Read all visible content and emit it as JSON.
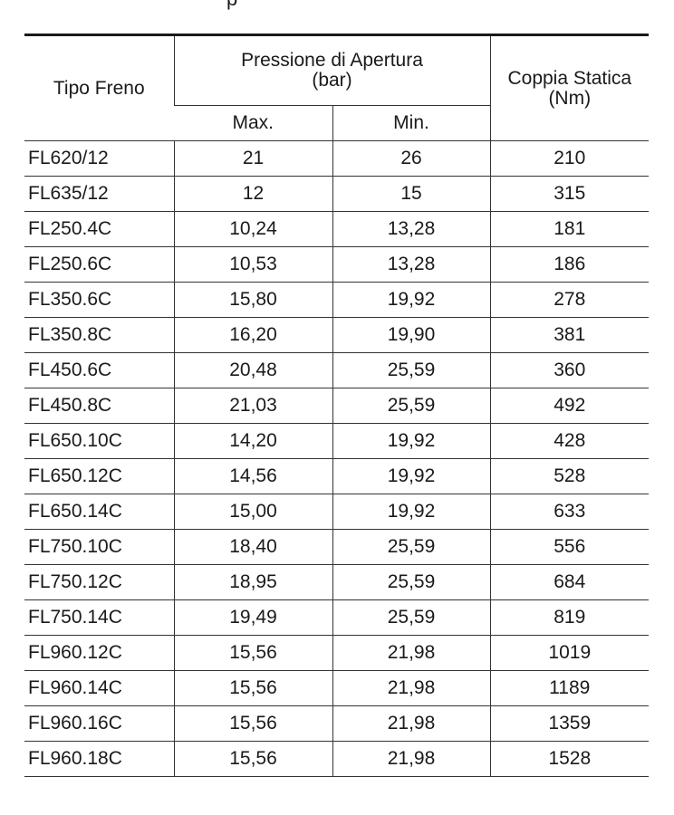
{
  "cut_text": "p",
  "table": {
    "header": {
      "tipo": "Tipo Freno",
      "pressione_line1": "Pressione di Apertura",
      "pressione_line2": "(bar)",
      "coppia_line1": "Coppia Statica",
      "coppia_line2": "(Nm)",
      "max": "Max.",
      "min": "Min."
    },
    "rows": [
      [
        "FL620/12",
        "21",
        "26",
        "210"
      ],
      [
        "FL635/12",
        "12",
        "15",
        "315"
      ],
      [
        "FL250.4C",
        "10,24",
        "13,28",
        "181"
      ],
      [
        "FL250.6C",
        "10,53",
        "13,28",
        "186"
      ],
      [
        "FL350.6C",
        "15,80",
        "19,92",
        "278"
      ],
      [
        "FL350.8C",
        "16,20",
        "19,90",
        "381"
      ],
      [
        "FL450.6C",
        "20,48",
        "25,59",
        "360"
      ],
      [
        "FL450.8C",
        "21,03",
        "25,59",
        "492"
      ],
      [
        "FL650.10C",
        "14,20",
        "19,92",
        "428"
      ],
      [
        "FL650.12C",
        "14,56",
        "19,92",
        "528"
      ],
      [
        "FL650.14C",
        "15,00",
        "19,92",
        "633"
      ],
      [
        "FL750.10C",
        "18,40",
        "25,59",
        "556"
      ],
      [
        "FL750.12C",
        "18,95",
        "25,59",
        "684"
      ],
      [
        "FL750.14C",
        "19,49",
        "25,59",
        "819"
      ],
      [
        "FL960.12C",
        "15,56",
        "21,98",
        "1019"
      ],
      [
        "FL960.14C",
        "15,56",
        "21,98",
        "1189"
      ],
      [
        "FL960.16C",
        "15,56",
        "21,98",
        "1359"
      ],
      [
        "FL960.18C",
        "15,56",
        "21,98",
        "1528"
      ]
    ]
  }
}
